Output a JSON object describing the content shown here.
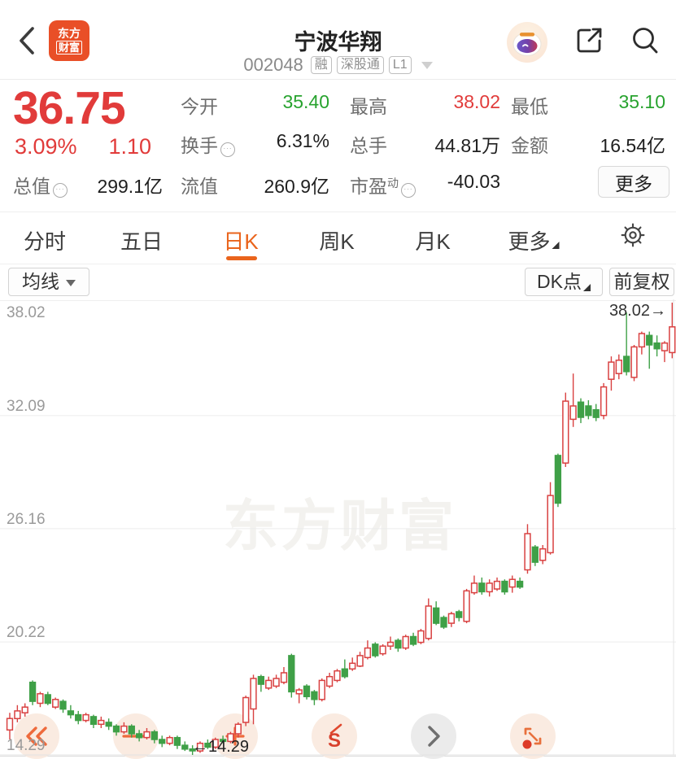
{
  "header": {
    "title": "宁波华翔",
    "code": "002048",
    "badges": [
      "融",
      "深股通",
      "L1"
    ],
    "icons": [
      "back-chevron",
      "eastmoney-logo",
      "robot-assistant",
      "share",
      "search"
    ]
  },
  "quote": {
    "price": "36.75",
    "change_pct": "3.09%",
    "change_abs": "1.10",
    "open_label": "今开",
    "open": "35.40",
    "high_label": "最高",
    "high": "38.02",
    "low_label": "最低",
    "low": "35.10",
    "turnover_label": "换手",
    "turnover": "6.31%",
    "volume_label": "总手",
    "volume": "44.81万",
    "amount_label": "金额",
    "amount": "16.54亿",
    "mktcap_label": "总值",
    "mktcap": "299.1亿",
    "float_label": "流值",
    "floatcap": "260.9亿",
    "pe_label": "市盈",
    "pe_sup": "动",
    "pe": "-40.03",
    "more_label": "更多"
  },
  "tabs": {
    "items": [
      "分时",
      "五日",
      "日K",
      "周K",
      "月K",
      "更多"
    ],
    "active": "日K"
  },
  "toolbar": {
    "ma": "均线",
    "dk": "DK点",
    "adjust": "前复权"
  },
  "colors": {
    "up": "#d94141",
    "down": "#3fa047",
    "accent_orange": "#ea641c",
    "price_red": "#e13b3a",
    "value_green": "#28a32f"
  },
  "floating_buttons": [
    "double-chevron-left",
    "horizontal-line",
    "plus",
    "s-curve",
    "chevron-right",
    "expand-arrows"
  ],
  "chart_data": {
    "type": "candlestick",
    "title": "日K 前复权",
    "y_max": 38.02,
    "y_min": 14.29,
    "grid_prices": [
      32.09,
      26.16,
      20.22
    ],
    "y_axis_labels": [
      "38.02",
      "32.09",
      "26.16",
      "20.22",
      "14.29"
    ],
    "high_annotation": "38.02→",
    "low_annotation": "←14.29",
    "watermark": "东方财富",
    "legend": "ohlc candles, red=up hollow, green=down solid",
    "candles": [
      [
        15.6,
        16.5,
        15.1,
        16.2
      ],
      [
        16.2,
        16.9,
        16.0,
        16.6
      ],
      [
        16.5,
        17.0,
        16.3,
        16.8
      ],
      [
        18.1,
        18.2,
        16.9,
        17.1
      ],
      [
        17.0,
        17.6,
        16.8,
        17.5
      ],
      [
        17.45,
        17.6,
        16.9,
        17.0
      ],
      [
        16.8,
        17.3,
        16.7,
        17.2
      ],
      [
        17.1,
        17.2,
        16.5,
        16.7
      ],
      [
        16.6,
        16.9,
        16.2,
        16.4
      ],
      [
        16.4,
        16.6,
        15.9,
        16.1
      ],
      [
        16.1,
        16.5,
        16.0,
        16.4
      ],
      [
        16.3,
        16.4,
        15.7,
        15.9
      ],
      [
        15.9,
        16.3,
        15.7,
        16.1
      ],
      [
        16.0,
        16.2,
        15.6,
        15.8
      ],
      [
        15.8,
        15.9,
        15.3,
        15.5
      ],
      [
        15.5,
        16.0,
        15.4,
        15.8
      ],
      [
        15.8,
        15.9,
        15.2,
        15.4
      ],
      [
        15.4,
        15.6,
        15.0,
        15.2
      ],
      [
        15.2,
        15.7,
        15.1,
        15.5
      ],
      [
        15.5,
        15.6,
        14.9,
        15.1
      ],
      [
        15.1,
        15.3,
        14.7,
        14.9
      ],
      [
        14.9,
        15.3,
        14.8,
        15.2
      ],
      [
        15.2,
        15.3,
        14.6,
        14.8
      ],
      [
        14.8,
        15.0,
        14.5,
        14.6
      ],
      [
        14.6,
        14.8,
        14.29,
        14.5
      ],
      [
        14.5,
        15.0,
        14.4,
        14.9
      ],
      [
        14.9,
        15.1,
        14.6,
        14.7
      ],
      [
        14.7,
        15.2,
        14.6,
        15.1
      ],
      [
        15.1,
        15.3,
        14.9,
        15.0
      ],
      [
        15.0,
        15.5,
        14.9,
        15.4
      ],
      [
        15.4,
        16.0,
        15.2,
        15.9
      ],
      [
        16.0,
        17.4,
        15.8,
        17.3
      ],
      [
        16.7,
        18.5,
        15.9,
        18.3
      ],
      [
        18.4,
        18.5,
        17.6,
        18.0
      ],
      [
        17.8,
        18.4,
        17.7,
        18.2
      ],
      [
        17.9,
        18.5,
        17.8,
        18.3
      ],
      [
        18.1,
        18.9,
        18.0,
        18.6
      ],
      [
        19.5,
        19.6,
        17.3,
        17.6
      ],
      [
        17.5,
        17.8,
        17.0,
        17.7
      ],
      [
        17.9,
        18.0,
        17.2,
        17.35
      ],
      [
        17.6,
        17.7,
        16.9,
        17.2
      ],
      [
        17.2,
        18.3,
        17.1,
        18.2
      ],
      [
        17.9,
        18.6,
        17.8,
        18.4
      ],
      [
        18.2,
        18.8,
        18.1,
        18.7
      ],
      [
        18.8,
        19.3,
        18.3,
        18.4
      ],
      [
        18.8,
        19.4,
        18.7,
        19.1
      ],
      [
        18.95,
        19.7,
        18.9,
        19.5
      ],
      [
        19.4,
        20.3,
        19.3,
        19.9
      ],
      [
        20.1,
        20.2,
        19.4,
        19.5
      ],
      [
        19.6,
        20.1,
        19.5,
        20.0
      ],
      [
        20.0,
        20.5,
        19.8,
        20.2
      ],
      [
        20.3,
        20.4,
        19.7,
        19.9
      ],
      [
        19.9,
        20.6,
        19.8,
        20.5
      ],
      [
        20.5,
        20.7,
        20.0,
        20.1
      ],
      [
        20.2,
        20.9,
        20.1,
        20.8
      ],
      [
        20.4,
        22.5,
        20.3,
        22.1
      ],
      [
        22.0,
        22.35,
        21.1,
        21.2
      ],
      [
        21.5,
        21.6,
        20.9,
        21.0
      ],
      [
        21.2,
        21.8,
        21.0,
        21.7
      ],
      [
        21.8,
        21.9,
        21.3,
        21.5
      ],
      [
        21.3,
        23.0,
        21.2,
        22.9
      ],
      [
        22.8,
        23.7,
        22.7,
        23.3
      ],
      [
        23.3,
        23.6,
        22.7,
        22.85
      ],
      [
        22.85,
        23.5,
        22.6,
        23.3
      ],
      [
        23.0,
        23.6,
        22.9,
        23.4
      ],
      [
        23.4,
        23.5,
        22.7,
        22.85
      ],
      [
        23.1,
        23.7,
        22.8,
        23.5
      ],
      [
        23.4,
        23.6,
        23.0,
        23.1
      ],
      [
        24.0,
        26.4,
        23.8,
        25.9
      ],
      [
        25.2,
        25.3,
        24.2,
        24.4
      ],
      [
        24.5,
        25.3,
        24.3,
        25.1
      ],
      [
        24.9,
        28.6,
        24.8,
        27.9
      ],
      [
        30.0,
        30.1,
        27.3,
        27.5
      ],
      [
        29.6,
        33.3,
        29.4,
        32.85
      ],
      [
        31.9,
        34.3,
        31.5,
        32.6
      ],
      [
        32.8,
        33.0,
        31.7,
        32.0
      ],
      [
        32.6,
        32.9,
        31.9,
        32.1
      ],
      [
        32.4,
        32.7,
        31.8,
        32.0
      ],
      [
        32.1,
        33.8,
        31.9,
        33.6
      ],
      [
        34.0,
        35.2,
        33.4,
        34.9
      ],
      [
        34.3,
        35.3,
        34.0,
        35.0
      ],
      [
        35.2,
        37.5,
        34.2,
        34.4
      ],
      [
        34.1,
        35.8,
        33.9,
        35.7
      ],
      [
        35.7,
        36.5,
        35.3,
        36.4
      ],
      [
        36.3,
        36.5,
        34.55,
        35.8
      ],
      [
        35.9,
        36.3,
        35.2,
        35.6
      ],
      [
        35.5,
        36.0,
        34.9,
        35.9
      ],
      [
        35.4,
        38.02,
        35.1,
        36.75
      ]
    ]
  }
}
